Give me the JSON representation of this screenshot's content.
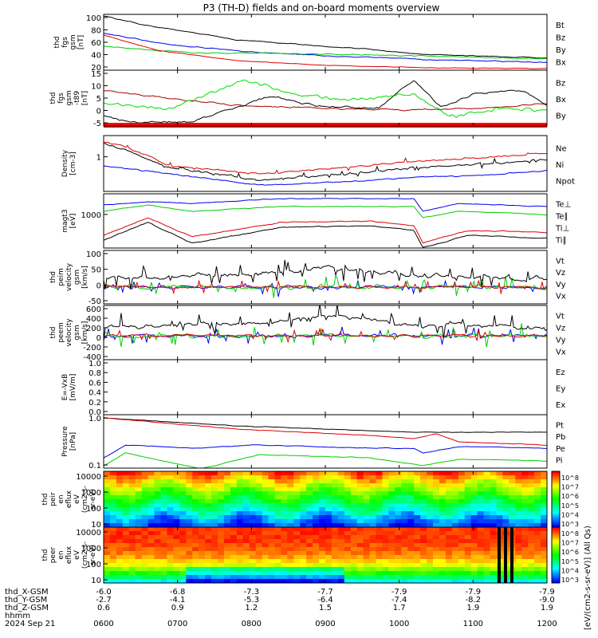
{
  "title": "P3 (TH-D) fields and on-board moments overview",
  "chart_data": {
    "type": "line",
    "title": "P3 (TH-D) fields and on-board moments overview",
    "time_axis": {
      "hhmm": [
        "0600",
        "0700",
        "0800",
        "0900",
        "1000",
        "1100",
        "1200"
      ],
      "date_label": "2024 Sep 21",
      "rows": [
        {
          "label": "thd_X-GSM",
          "values": [
            "-6.0",
            "-6.8",
            "-7.3",
            "-7.7",
            "-7.9",
            "-7.9",
            "-7.9"
          ]
        },
        {
          "label": "thd_Y-GSM",
          "values": [
            "-2.7",
            "-4.1",
            "-5.3",
            "-6.4",
            "-7.4",
            "-8.2",
            "-9.0"
          ]
        },
        {
          "label": "thd_Z-GSM",
          "values": [
            "0.6",
            "0.9",
            "1.2",
            "1.5",
            "1.7",
            "1.9",
            "1.9"
          ]
        },
        {
          "label": "hhmm",
          "values": []
        }
      ]
    },
    "panels": [
      {
        "id": "fgs-gsm",
        "ylabel": [
          "thd",
          "fgs",
          "gsm",
          "[nT]"
        ],
        "yticks": [
          "100",
          "80",
          "60",
          "40",
          "20"
        ],
        "legend": [
          {
            "text": "Bt",
            "color": "#000000"
          },
          {
            "text": "Bz",
            "color": "#dd0000"
          },
          {
            "text": "By",
            "color": "#00cc00"
          },
          {
            "text": "Bx",
            "color": "#0000ee"
          }
        ]
      },
      {
        "id": "fgs-gsm-dip",
        "ylabel": [
          "thd",
          "fgs",
          "gsm",
          "-t89",
          "[nT]"
        ],
        "yticks": [
          "15",
          "10",
          "5",
          "0",
          "-5"
        ],
        "legend": [
          {
            "text": "Bz",
            "color": "#aa0000"
          },
          {
            "text": "Bx",
            "color": "#000000"
          },
          {
            "text": "By",
            "color": "#00cc00"
          }
        ]
      },
      {
        "id": "density",
        "ylabel": [
          "Density",
          "[cm-3]"
        ],
        "yticks": [
          "1"
        ],
        "legend": [
          {
            "text": "Ne",
            "color": "#dd0000"
          },
          {
            "text": "Ni",
            "color": "#000000"
          },
          {
            "text": "Npot",
            "color": "#0000ee"
          }
        ]
      },
      {
        "id": "temperature",
        "ylabel": [
          "magt3",
          "[eV]"
        ],
        "yticks": [
          "1000"
        ],
        "legend": [
          {
            "text": "Te⊥",
            "color": "#dd0000"
          },
          {
            "text": "Te∥",
            "color": "#000000"
          },
          {
            "text": "Ti⊥",
            "color": "#dd0000"
          },
          {
            "text": "Ti∥",
            "color": "#00cc00"
          }
        ]
      },
      {
        "id": "peim-velocity",
        "ylabel": [
          "thd",
          "peim",
          "velocity",
          "gsm",
          "[km/s]"
        ],
        "yticks": [
          "100",
          "50",
          "0",
          "-50"
        ],
        "legend": [
          {
            "text": "Vt",
            "color": "#000000"
          },
          {
            "text": "Vz",
            "color": "#dd0000"
          },
          {
            "text": "Vy",
            "color": "#00cc00"
          },
          {
            "text": "Vx",
            "color": "#0000ee"
          }
        ]
      },
      {
        "id": "peem-velocity",
        "ylabel": [
          "thd",
          "peem",
          "velocity",
          "gsm",
          "[km/s]"
        ],
        "yticks": [
          "600",
          "400",
          "200",
          "0",
          "-200",
          "-400"
        ],
        "legend": [
          {
            "text": "Vt",
            "color": "#000000"
          },
          {
            "text": "Vz",
            "color": "#dd0000"
          },
          {
            "text": "Vy",
            "color": "#00cc00"
          },
          {
            "text": "Vx",
            "color": "#0000ee"
          }
        ]
      },
      {
        "id": "efield",
        "ylabel": [
          "E=-VxB",
          "[mV/m]"
        ],
        "yticks": [
          "1.0",
          "0.8",
          "0.6",
          "0.4",
          "0.2",
          "0.0"
        ],
        "legend": [
          {
            "text": "Ez",
            "color": "#dd0000"
          },
          {
            "text": "Ey",
            "color": "#00cc00"
          },
          {
            "text": "Ex",
            "color": "#0000ee"
          }
        ]
      },
      {
        "id": "pressure",
        "ylabel": [
          "Pressure",
          "[nPa]"
        ],
        "yticks": [
          "1.0",
          "0.1"
        ],
        "legend": [
          {
            "text": "Pt",
            "color": "#000000"
          },
          {
            "text": "Pb",
            "color": "#dd0000"
          },
          {
            "text": "Pe",
            "color": "#00cc00"
          },
          {
            "text": "Pi",
            "color": "#0000ee"
          }
        ]
      },
      {
        "id": "peir-spec",
        "ylabel": [
          "thd",
          "peir",
          "en",
          "eflux",
          "eV",
          "(cm2-s-",
          "sr-eV)"
        ],
        "yticks": [
          "10000",
          "1000",
          "100",
          "10"
        ]
      },
      {
        "id": "peer-spec",
        "ylabel": [
          "thd",
          "peer",
          "en",
          "eflux",
          "eV",
          "(cm2-s-",
          "sr-eV)"
        ],
        "yticks": [
          "10000",
          "1000",
          "100",
          "10"
        ]
      }
    ],
    "colorbar": {
      "label": "[eV/(cm2-s-sr-eV)] (All Qs)",
      "upper_ticks": [
        "10^8",
        "10^7",
        "10^6",
        "10^5",
        "10^4",
        "10^3"
      ],
      "lower_ticks": [
        "10^8",
        "10^7",
        "10^6",
        "10^5",
        "10^4",
        "10^3"
      ]
    }
  }
}
